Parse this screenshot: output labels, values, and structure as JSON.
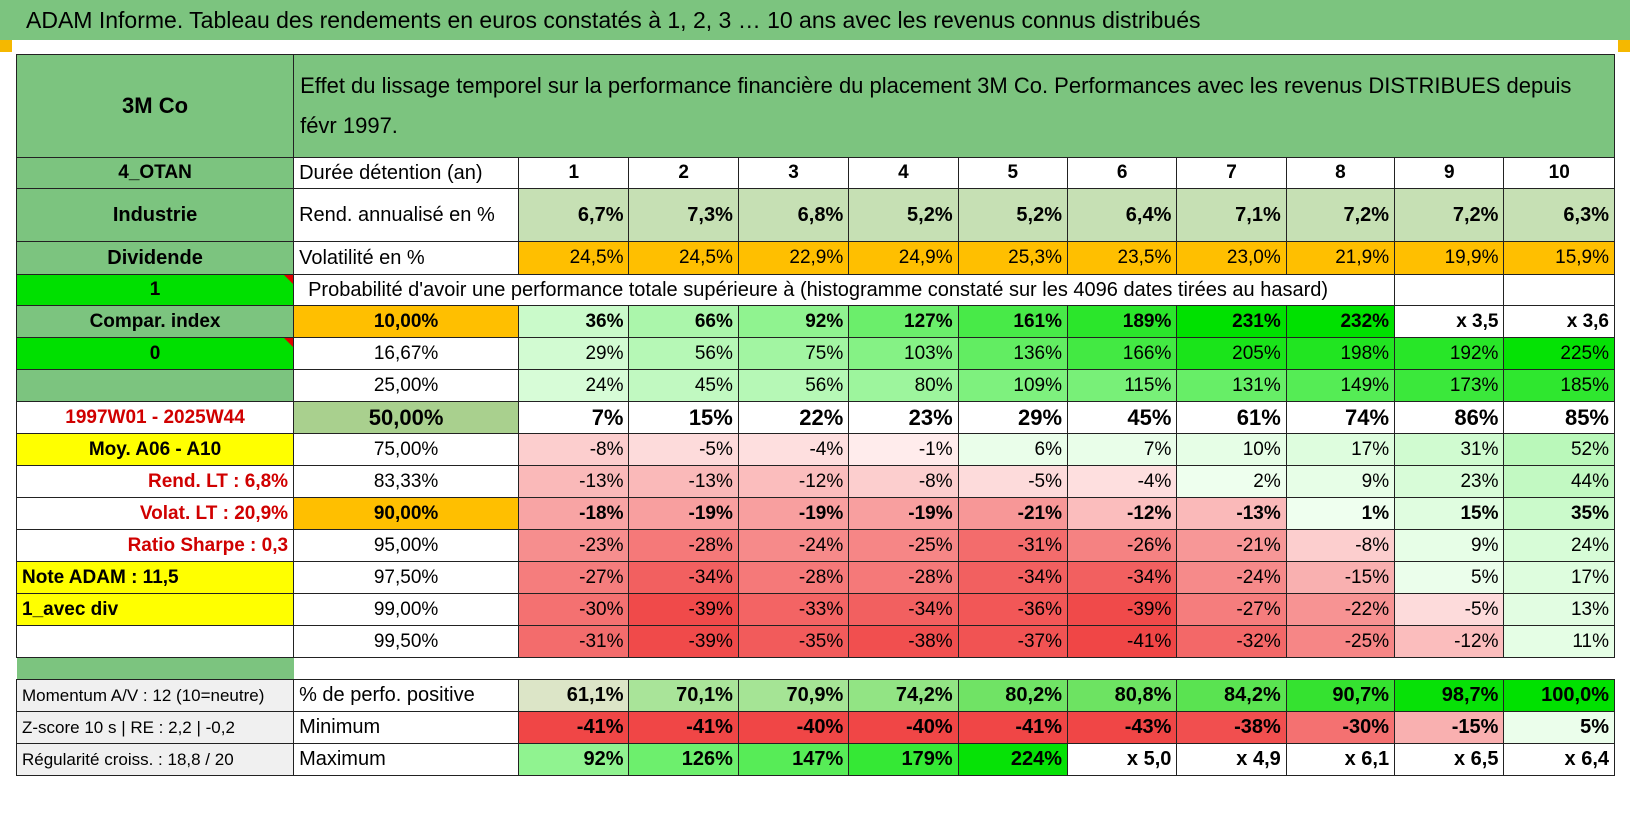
{
  "header": "ADAM Informe. Tableau des rendements en euros constatés à 1, 2, 3 … 10 ans avec les revenus connus distribués",
  "colors": {
    "header_bg": "#7cc47f",
    "yellow": "#ffff00",
    "orange": "#ffbf00",
    "lime": "#00e000",
    "label_red": "#d00000"
  },
  "title": {
    "name": "3M Co",
    "description": "Effet du lissage temporel sur la performance financière du placement 3M Co. Performances avec les revenus DISTRIBUES depuis févr 1997."
  },
  "side": {
    "code": "4_OTAN",
    "sector": "Industrie",
    "type": "Dividende",
    "flag1": "1",
    "compar": "Compar. index",
    "flag0": "0",
    "period": "1997W01 - 2025W44",
    "moy": "Moy. A06 - A10",
    "rend_lt": "Rend. LT :    6,8%",
    "volat_lt": "Volat. LT :    20,9%",
    "sharpe": "Ratio Sharpe :    0,3",
    "note": "Note ADAM : 11,5",
    "div": "1_avec div"
  },
  "horizon": {
    "label": "Durée détention (an)",
    "years": [
      "1",
      "2",
      "3",
      "4",
      "5",
      "6",
      "7",
      "8",
      "9",
      "10"
    ]
  },
  "rend": {
    "label": "Rend. annualisé en %",
    "values": [
      "6,7%",
      "7,3%",
      "6,8%",
      "5,2%",
      "5,2%",
      "6,4%",
      "7,1%",
      "7,2%",
      "7,2%",
      "6,3%"
    ]
  },
  "vol": {
    "label": "Volatilité en %",
    "values": [
      "24,5%",
      "24,5%",
      "22,9%",
      "24,9%",
      "25,3%",
      "23,5%",
      "23,0%",
      "21,9%",
      "19,9%",
      "15,9%"
    ]
  },
  "prob_heading": "Probabilité d'avoir une performance totale supérieure à (histogramme constaté sur les 4096 dates tirées au hasard)",
  "quantiles": [
    {
      "pct": "10,00%",
      "values": [
        "36%",
        "66%",
        "92%",
        "127%",
        "161%",
        "189%",
        "231%",
        "232%",
        "x 3,5",
        "x 3,6"
      ]
    },
    {
      "pct": "16,67%",
      "values": [
        "29%",
        "56%",
        "75%",
        "103%",
        "136%",
        "166%",
        "205%",
        "198%",
        "192%",
        "225%"
      ]
    },
    {
      "pct": "25,00%",
      "values": [
        "24%",
        "45%",
        "56%",
        "80%",
        "109%",
        "115%",
        "131%",
        "149%",
        "173%",
        "185%"
      ]
    },
    {
      "pct": "50,00%",
      "values": [
        "7%",
        "15%",
        "22%",
        "23%",
        "29%",
        "45%",
        "61%",
        "74%",
        "86%",
        "85%"
      ]
    },
    {
      "pct": "75,00%",
      "values": [
        "-8%",
        "-5%",
        "-4%",
        "-1%",
        "6%",
        "7%",
        "10%",
        "17%",
        "31%",
        "52%"
      ]
    },
    {
      "pct": "83,33%",
      "values": [
        "-13%",
        "-13%",
        "-12%",
        "-8%",
        "-5%",
        "-4%",
        "2%",
        "9%",
        "23%",
        "44%"
      ]
    },
    {
      "pct": "90,00%",
      "values": [
        "-18%",
        "-19%",
        "-19%",
        "-19%",
        "-21%",
        "-12%",
        "-13%",
        "1%",
        "15%",
        "35%"
      ]
    },
    {
      "pct": "95,00%",
      "values": [
        "-23%",
        "-28%",
        "-24%",
        "-25%",
        "-31%",
        "-26%",
        "-21%",
        "-8%",
        "9%",
        "24%"
      ]
    },
    {
      "pct": "97,50%",
      "values": [
        "-27%",
        "-34%",
        "-28%",
        "-28%",
        "-34%",
        "-34%",
        "-24%",
        "-15%",
        "5%",
        "17%"
      ]
    },
    {
      "pct": "99,00%",
      "values": [
        "-30%",
        "-39%",
        "-33%",
        "-34%",
        "-36%",
        "-39%",
        "-27%",
        "-22%",
        "-5%",
        "13%"
      ]
    },
    {
      "pct": "99,50%",
      "values": [
        "-31%",
        "-39%",
        "-35%",
        "-38%",
        "-37%",
        "-41%",
        "-32%",
        "-25%",
        "-12%",
        "11%"
      ]
    }
  ],
  "bottom": [
    {
      "side": "Momentum A/V : 12 (10=neutre)",
      "label": "% de perfo. positive",
      "values": [
        "61,1%",
        "70,1%",
        "70,9%",
        "74,2%",
        "80,2%",
        "80,8%",
        "84,2%",
        "90,7%",
        "98,7%",
        "100,0%"
      ]
    },
    {
      "side": "Z-score 10 s | RE : 2,2 | -0,2",
      "label": "Minimum",
      "values": [
        "-41%",
        "-41%",
        "-40%",
        "-40%",
        "-41%",
        "-43%",
        "-38%",
        "-30%",
        "-15%",
        "5%"
      ]
    },
    {
      "side": "Régularité croiss. : 18,8 / 20",
      "label": "Maximum",
      "values": [
        "92%",
        "126%",
        "147%",
        "179%",
        "224%",
        "x 5,0",
        "x 4,9",
        "x 6,1",
        "x 6,5",
        "x 6,4"
      ]
    }
  ]
}
